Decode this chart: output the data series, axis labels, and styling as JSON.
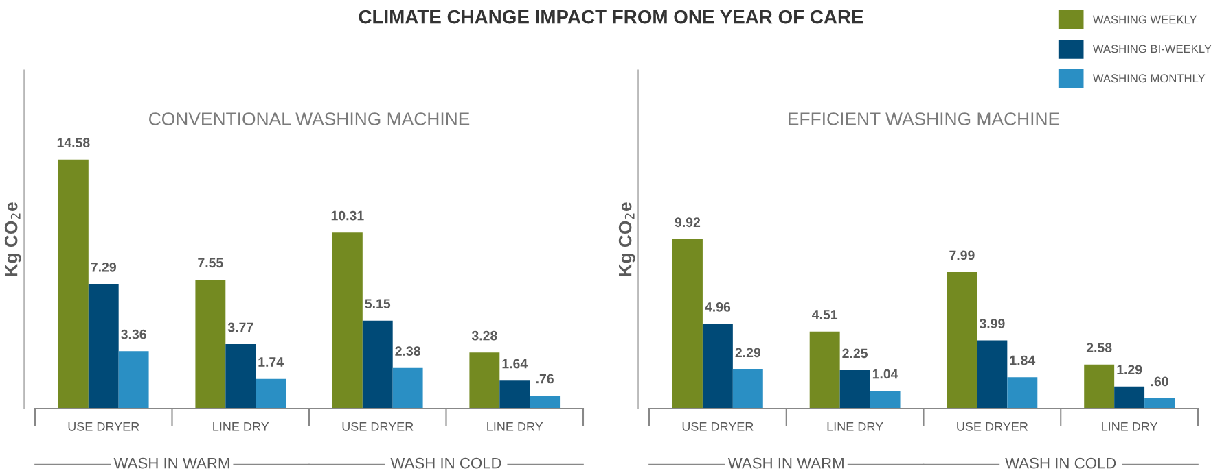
{
  "chart_data": [
    {
      "type": "bar",
      "title": "CONVENTIONAL WASHING MACHINE",
      "ylabel": "Kg CO$_{2}$e",
      "categories": [
        "USE DRYER",
        "LINE DRY",
        "USE DRYER",
        "LINE DRY"
      ],
      "series": [
        {
          "name": "WASHING WEEKLY",
          "color": "#748a21",
          "values": [
            14.58,
            7.55,
            10.31,
            3.28
          ],
          "value_labels": [
            "14.58",
            "7.55",
            "10.31",
            "3.28"
          ]
        },
        {
          "name": "WASHING BI-WEEKLY",
          "color": "#004a77",
          "values": [
            7.29,
            3.77,
            5.15,
            1.64
          ],
          "value_labels": [
            "7.29",
            "3.77",
            "5.15",
            "1.64"
          ]
        },
        {
          "name": "WASHING MONTHLY",
          "color": "#2a8fc4",
          "values": [
            3.36,
            1.74,
            2.38,
            0.76
          ],
          "value_labels": [
            "3.36",
            "1.74",
            "2.38",
            ".76"
          ]
        }
      ],
      "annotations": [
        "WASH IN WARM",
        "WASH IN COLD",
        "CLIMATE CHANGE IMPACT FROM ONE YEAR OF CARE"
      ],
      "tick_labels": "x",
      "grid": false,
      "legend": "top right"
    },
    {
      "type": "bar",
      "title": "EFFICIENT WASHING MACHINE",
      "ylabel": "Kg CO$_{2}$e",
      "categories": [
        "USE DRYER",
        "LINE DRY",
        "USE DRYER",
        "LINE DRY"
      ],
      "series": [
        {
          "color": "#748a21",
          "values": [
            9.92,
            4.51,
            7.99,
            2.58
          ],
          "value_labels": [
            "9.92",
            "4.51",
            "7.99",
            "2.58"
          ]
        },
        {
          "color": "#004a77",
          "values": [
            4.96,
            2.25,
            3.99,
            1.29
          ],
          "value_labels": [
            "4.96",
            "2.25",
            "3.99",
            "1.29"
          ]
        },
        {
          "color": "#2a8fc4",
          "values": [
            2.29,
            1.04,
            1.84,
            0.6
          ],
          "value_labels": [
            "2.29",
            "1.04",
            "1.84",
            ".60"
          ]
        }
      ],
      "annotations": [
        "WASH IN WARM",
        "WASH IN COLD"
      ],
      "tick_labels": "x",
      "grid": false
    }
  ]
}
